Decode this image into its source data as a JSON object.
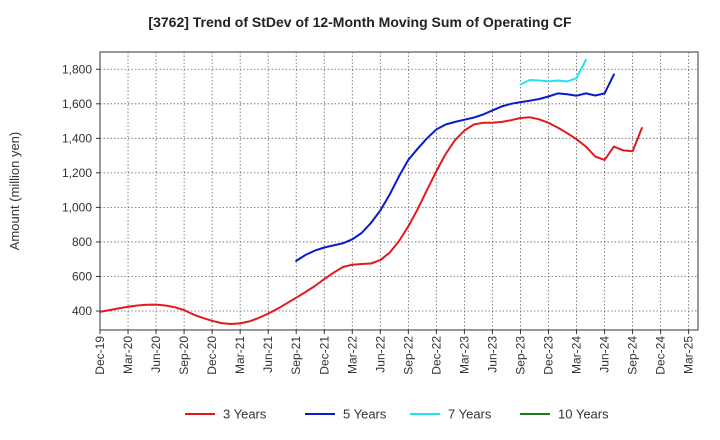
{
  "chart_data": {
    "type": "line",
    "title": "[3762]  Trend of StDev of 12-Month Moving Sum of Operating CF",
    "ylabel": "Amount (million yen)",
    "ylim": [
      290,
      1900
    ],
    "yticks": [
      400,
      600,
      800,
      1000,
      1200,
      1400,
      1600,
      1800
    ],
    "ytick_labels": [
      "400",
      "600",
      "800",
      "1,000",
      "1,200",
      "1,400",
      "1,600",
      "1,800"
    ],
    "x_start": "2019-12",
    "x_months": 64,
    "xticks": [
      "Dec-19",
      "Mar-20",
      "Jun-20",
      "Sep-20",
      "Dec-20",
      "Mar-21",
      "Jun-21",
      "Sep-21",
      "Dec-21",
      "Mar-22",
      "Jun-22",
      "Sep-22",
      "Dec-22",
      "Mar-23",
      "Jun-23",
      "Sep-23",
      "Dec-23",
      "Mar-24",
      "Jun-24",
      "Sep-24",
      "Dec-24",
      "Mar-25"
    ],
    "grid": true,
    "legend_position": "bottom",
    "series": [
      {
        "name": "3 Years",
        "color": "#e31a1c",
        "start": "2019-12",
        "values": [
          395,
          405,
          415,
          425,
          432,
          436,
          437,
          432,
          422,
          405,
          380,
          360,
          343,
          330,
          325,
          328,
          340,
          360,
          385,
          413,
          445,
          477,
          510,
          545,
          585,
          622,
          655,
          668,
          672,
          675,
          695,
          738,
          805,
          890,
          990,
          1100,
          1210,
          1310,
          1390,
          1445,
          1480,
          1490,
          1490,
          1495,
          1505,
          1518,
          1522,
          1510,
          1490,
          1462,
          1430,
          1395,
          1352,
          1295,
          1275,
          1352,
          1330,
          1325,
          1460
        ]
      },
      {
        "name": "5 Years",
        "color": "#0a1bcc",
        "start": "2021-09",
        "values": [
          690,
          725,
          750,
          768,
          780,
          792,
          815,
          852,
          910,
          982,
          1075,
          1180,
          1275,
          1340,
          1400,
          1452,
          1480,
          1495,
          1508,
          1520,
          1538,
          1562,
          1585,
          1600,
          1610,
          1618,
          1628,
          1642,
          1660,
          1655,
          1647,
          1660,
          1648,
          1660,
          1770
        ]
      },
      {
        "name": "7 Years",
        "color": "#22e2ee",
        "start": "2023-09",
        "values": [
          1712,
          1738,
          1735,
          1730,
          1735,
          1730,
          1748,
          1855
        ]
      },
      {
        "name": "10 Years",
        "color": "#1a7f1a",
        "start": "2024-03",
        "values": []
      }
    ]
  }
}
